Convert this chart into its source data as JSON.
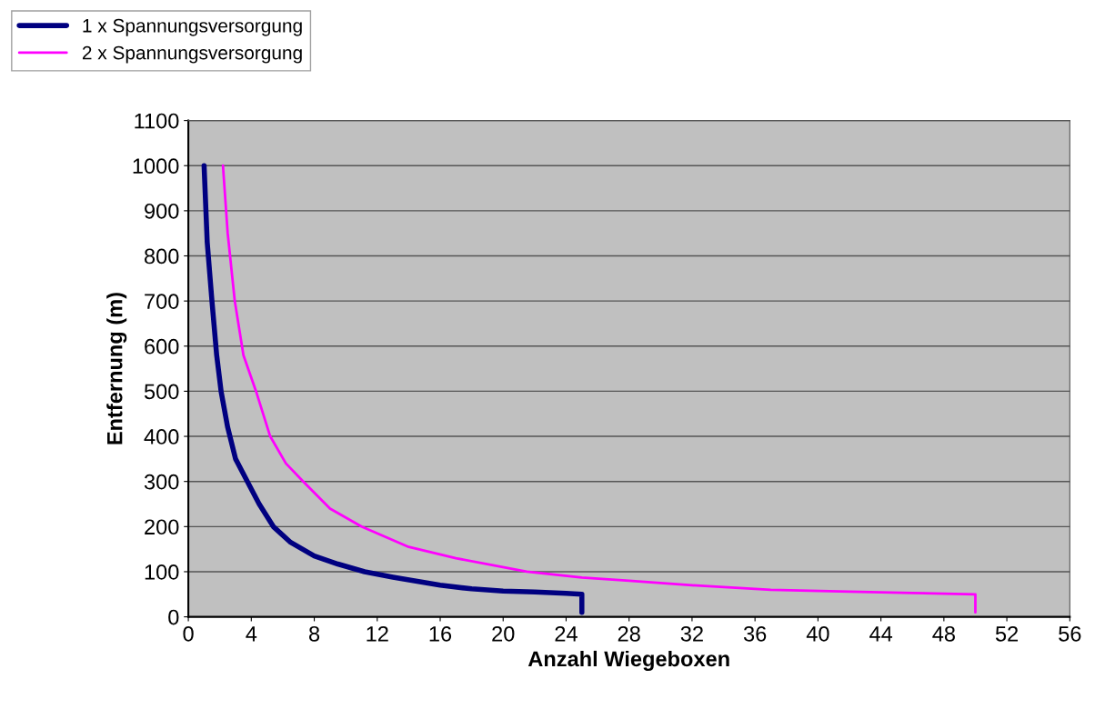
{
  "chart_data": {
    "type": "line",
    "xlabel": "Anzahl Wiegeboxen",
    "ylabel": "Entfernung (m)",
    "xlim": [
      0,
      56
    ],
    "xticks": [
      0,
      4,
      8,
      12,
      16,
      20,
      24,
      28,
      32,
      36,
      40,
      44,
      48,
      52,
      56
    ],
    "ylim": [
      0,
      1100
    ],
    "yticks": [
      0,
      100,
      200,
      300,
      400,
      500,
      600,
      700,
      800,
      900,
      1000,
      1100
    ],
    "grid": "y",
    "legend": "top left",
    "marker": "none",
    "line_style": "solid",
    "series": [
      {
        "name": "1 x Spannungsversorgung",
        "color": "#000080",
        "x": [
          1,
          1.2,
          1.5,
          1.8,
          2.08,
          2.5,
          3,
          3.75,
          4.5,
          5.4,
          6.5,
          8,
          9.5,
          11.2,
          13,
          16,
          18,
          20,
          22,
          24,
          25,
          25
        ],
        "values": [
          1000,
          830,
          700,
          580,
          500,
          420,
          350,
          300,
          250,
          200,
          165,
          135,
          117,
          100,
          88,
          70,
          62,
          57,
          55,
          52,
          50,
          10
        ]
      },
      {
        "name": "2 x Spannungsversorgung",
        "color": "#ff00ff",
        "x": [
          2.2,
          2.5,
          2.95,
          3.5,
          4.3,
          5.2,
          6.2,
          7.3,
          9,
          11,
          14,
          17,
          21.5,
          25,
          28,
          32,
          37,
          42,
          46,
          50,
          50
        ],
        "values": [
          1000,
          850,
          700,
          580,
          500,
          400,
          340,
          300,
          240,
          200,
          155,
          130,
          100,
          87,
          80,
          70,
          60,
          56,
          53,
          50,
          10
        ]
      }
    ]
  }
}
